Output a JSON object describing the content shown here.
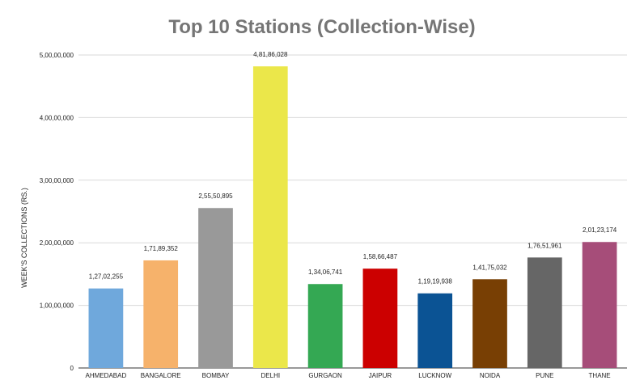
{
  "chart_data": {
    "type": "bar",
    "title": "Top 10 Stations (Collection-Wise)",
    "xlabel": "",
    "ylabel": "WEEK'S COLLECTIONS (RS.)",
    "ylim": [
      0,
      50000000
    ],
    "yticks": [
      0,
      10000000,
      20000000,
      30000000,
      40000000,
      50000000
    ],
    "ytick_labels": [
      "0",
      "1,00,00,000",
      "2,00,00,000",
      "3,00,00,000",
      "4,00,00,000",
      "5,00,00,000"
    ],
    "grid": true,
    "categories": [
      "AHMEDABAD",
      "BANGALORE",
      "BOMBAY",
      "DELHI",
      "GURGAON",
      "JAIPUR",
      "LUCKNOW",
      "NOIDA",
      "PUNE",
      "THANE"
    ],
    "values": [
      12702255,
      17189352,
      25550895,
      48186028,
      13406741,
      15866487,
      11919938,
      14175032,
      17651961,
      20123174
    ],
    "value_labels": [
      "1,27,02,255",
      "1,71,89,352",
      "2,55,50,895",
      "4,81,86,028",
      "1,34,06,741",
      "1,58,66,487",
      "1,19,19,938",
      "1,41,75,032",
      "1,76,51,961",
      "2,01,23,174"
    ],
    "colors": [
      "#6fa8dc",
      "#f6b26b",
      "#999999",
      "#ebe74a",
      "#34a853",
      "#cc0000",
      "#0b5394",
      "#783f04",
      "#666666",
      "#a64d79"
    ]
  }
}
